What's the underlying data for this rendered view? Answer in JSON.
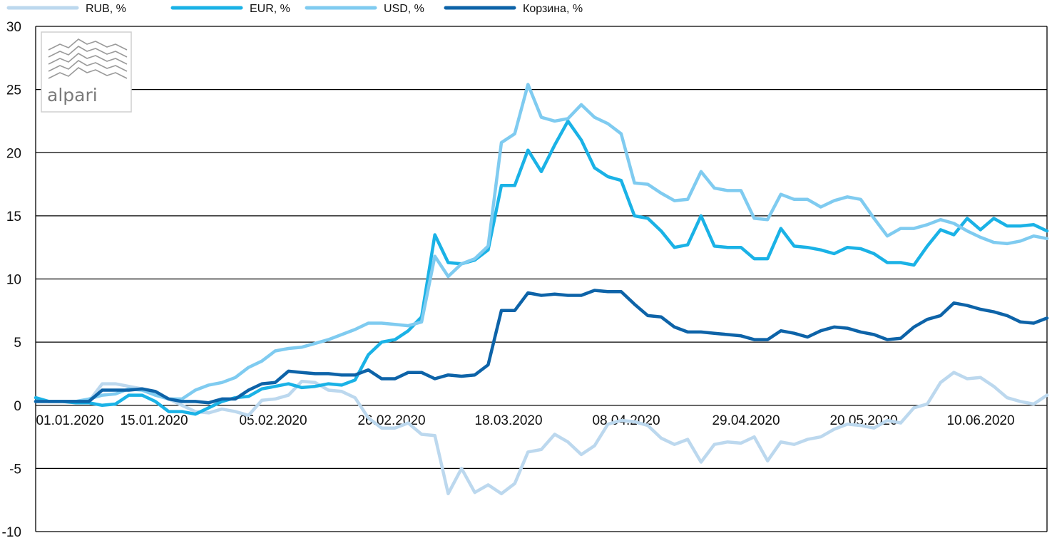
{
  "chart_data": {
    "type": "line",
    "title": "",
    "xlabel": "",
    "ylabel": "",
    "ylim": [
      -10,
      30
    ],
    "y_ticks": [
      -10,
      -5,
      0,
      5,
      10,
      15,
      20,
      25,
      30
    ],
    "x_tick_labels": [
      "01.01.2020",
      "15.01.2020",
      "05.02.2020",
      "26.02.2020",
      "18.03.2020",
      "08.04.2020",
      "29.04.2020",
      "20.05.2020",
      "10.06.2020"
    ],
    "grid": "horizontal",
    "legend_position": "top",
    "series": [
      {
        "name": "RUB, %",
        "color": "#bcd8ee",
        "values": [
          0.3,
          0.3,
          0.3,
          0.3,
          0.3,
          1.7,
          1.7,
          1.5,
          1.3,
          1.0,
          0.5,
          0.0,
          -0.5,
          -0.6,
          -0.3,
          -0.5,
          -0.8,
          0.4,
          0.5,
          0.8,
          1.9,
          1.8,
          1.2,
          1.1,
          0.6,
          -1.0,
          -1.8,
          -1.8,
          -1.4,
          -2.3,
          -2.4,
          -7.0,
          -5.0,
          -6.9,
          -6.3,
          -7.0,
          -6.2,
          -3.7,
          -3.5,
          -2.3,
          -2.9,
          -3.9,
          -3.2,
          -1.5,
          -1.2,
          -1.3,
          -1.6,
          -2.6,
          -3.1,
          -2.7,
          -4.5,
          -3.1,
          -2.9,
          -3.0,
          -2.5,
          -4.4,
          -2.9,
          -3.1,
          -2.7,
          -2.5,
          -1.9,
          -1.5,
          -1.6,
          -1.8,
          -1.2,
          -1.4,
          -0.2,
          0.1,
          1.8,
          2.6,
          2.1,
          2.2,
          1.5,
          0.6,
          0.3,
          0.1,
          0.8
        ]
      },
      {
        "name": "EUR, %",
        "color": "#1ab2e6",
        "values": [
          0.6,
          0.3,
          0.3,
          0.2,
          0.2,
          0.0,
          0.1,
          0.8,
          0.8,
          0.3,
          -0.5,
          -0.5,
          -0.7,
          -0.2,
          0.3,
          0.6,
          0.7,
          1.3,
          1.5,
          1.7,
          1.4,
          1.5,
          1.7,
          1.6,
          2.0,
          4.0,
          5.0,
          5.2,
          5.9,
          7.0,
          13.5,
          11.3,
          11.2,
          11.5,
          12.3,
          17.4,
          17.4,
          20.2,
          18.5,
          20.6,
          22.5,
          21.0,
          18.8,
          18.1,
          17.8,
          15.0,
          14.8,
          13.8,
          12.5,
          12.7,
          15.0,
          12.6,
          12.5,
          12.5,
          11.6,
          11.6,
          14.0,
          12.6,
          12.5,
          12.3,
          12.0,
          12.5,
          12.4,
          12.0,
          11.3,
          11.3,
          11.1,
          12.6,
          13.9,
          13.5,
          14.8,
          13.9,
          14.8,
          14.2,
          14.2,
          14.3,
          13.8
        ]
      },
      {
        "name": "USD, %",
        "color": "#7fcbf0",
        "values": [
          0.3,
          0.3,
          0.3,
          0.3,
          0.5,
          0.8,
          0.9,
          1.3,
          1.2,
          0.8,
          0.5,
          0.5,
          1.2,
          1.6,
          1.8,
          2.2,
          3.0,
          3.5,
          4.3,
          4.5,
          4.6,
          4.9,
          5.2,
          5.6,
          6.0,
          6.5,
          6.5,
          6.4,
          6.3,
          6.6,
          11.8,
          10.2,
          11.2,
          11.6,
          12.6,
          20.8,
          21.5,
          25.4,
          22.8,
          22.5,
          22.7,
          23.8,
          22.8,
          22.3,
          21.5,
          17.6,
          17.5,
          16.8,
          16.2,
          16.3,
          18.5,
          17.2,
          17.0,
          17.0,
          14.8,
          14.7,
          16.7,
          16.3,
          16.3,
          15.7,
          16.2,
          16.5,
          16.3,
          14.8,
          13.4,
          14.0,
          14.0,
          14.3,
          14.7,
          14.4,
          13.8,
          13.3,
          12.9,
          12.8,
          13.0,
          13.4,
          13.2
        ]
      },
      {
        "name": "Корзина, %",
        "color": "#0d63a8",
        "values": [
          0.3,
          0.3,
          0.3,
          0.3,
          0.3,
          1.2,
          1.2,
          1.2,
          1.3,
          1.1,
          0.5,
          0.3,
          0.3,
          0.2,
          0.5,
          0.5,
          1.2,
          1.7,
          1.8,
          2.7,
          2.6,
          2.5,
          2.5,
          2.4,
          2.4,
          2.8,
          2.1,
          2.1,
          2.6,
          2.6,
          2.1,
          2.4,
          2.3,
          2.4,
          3.2,
          7.5,
          7.5,
          8.9,
          8.7,
          8.8,
          8.7,
          8.7,
          9.1,
          9.0,
          9.0,
          8.0,
          7.1,
          7.0,
          6.2,
          5.8,
          5.8,
          5.7,
          5.6,
          5.5,
          5.2,
          5.2,
          5.9,
          5.7,
          5.4,
          5.9,
          6.2,
          6.1,
          5.8,
          5.6,
          5.2,
          5.3,
          6.2,
          6.8,
          7.1,
          8.1,
          7.9,
          7.6,
          7.4,
          7.1,
          6.6,
          6.5,
          6.9
        ]
      }
    ]
  },
  "logo": {
    "text": "alpari"
  }
}
